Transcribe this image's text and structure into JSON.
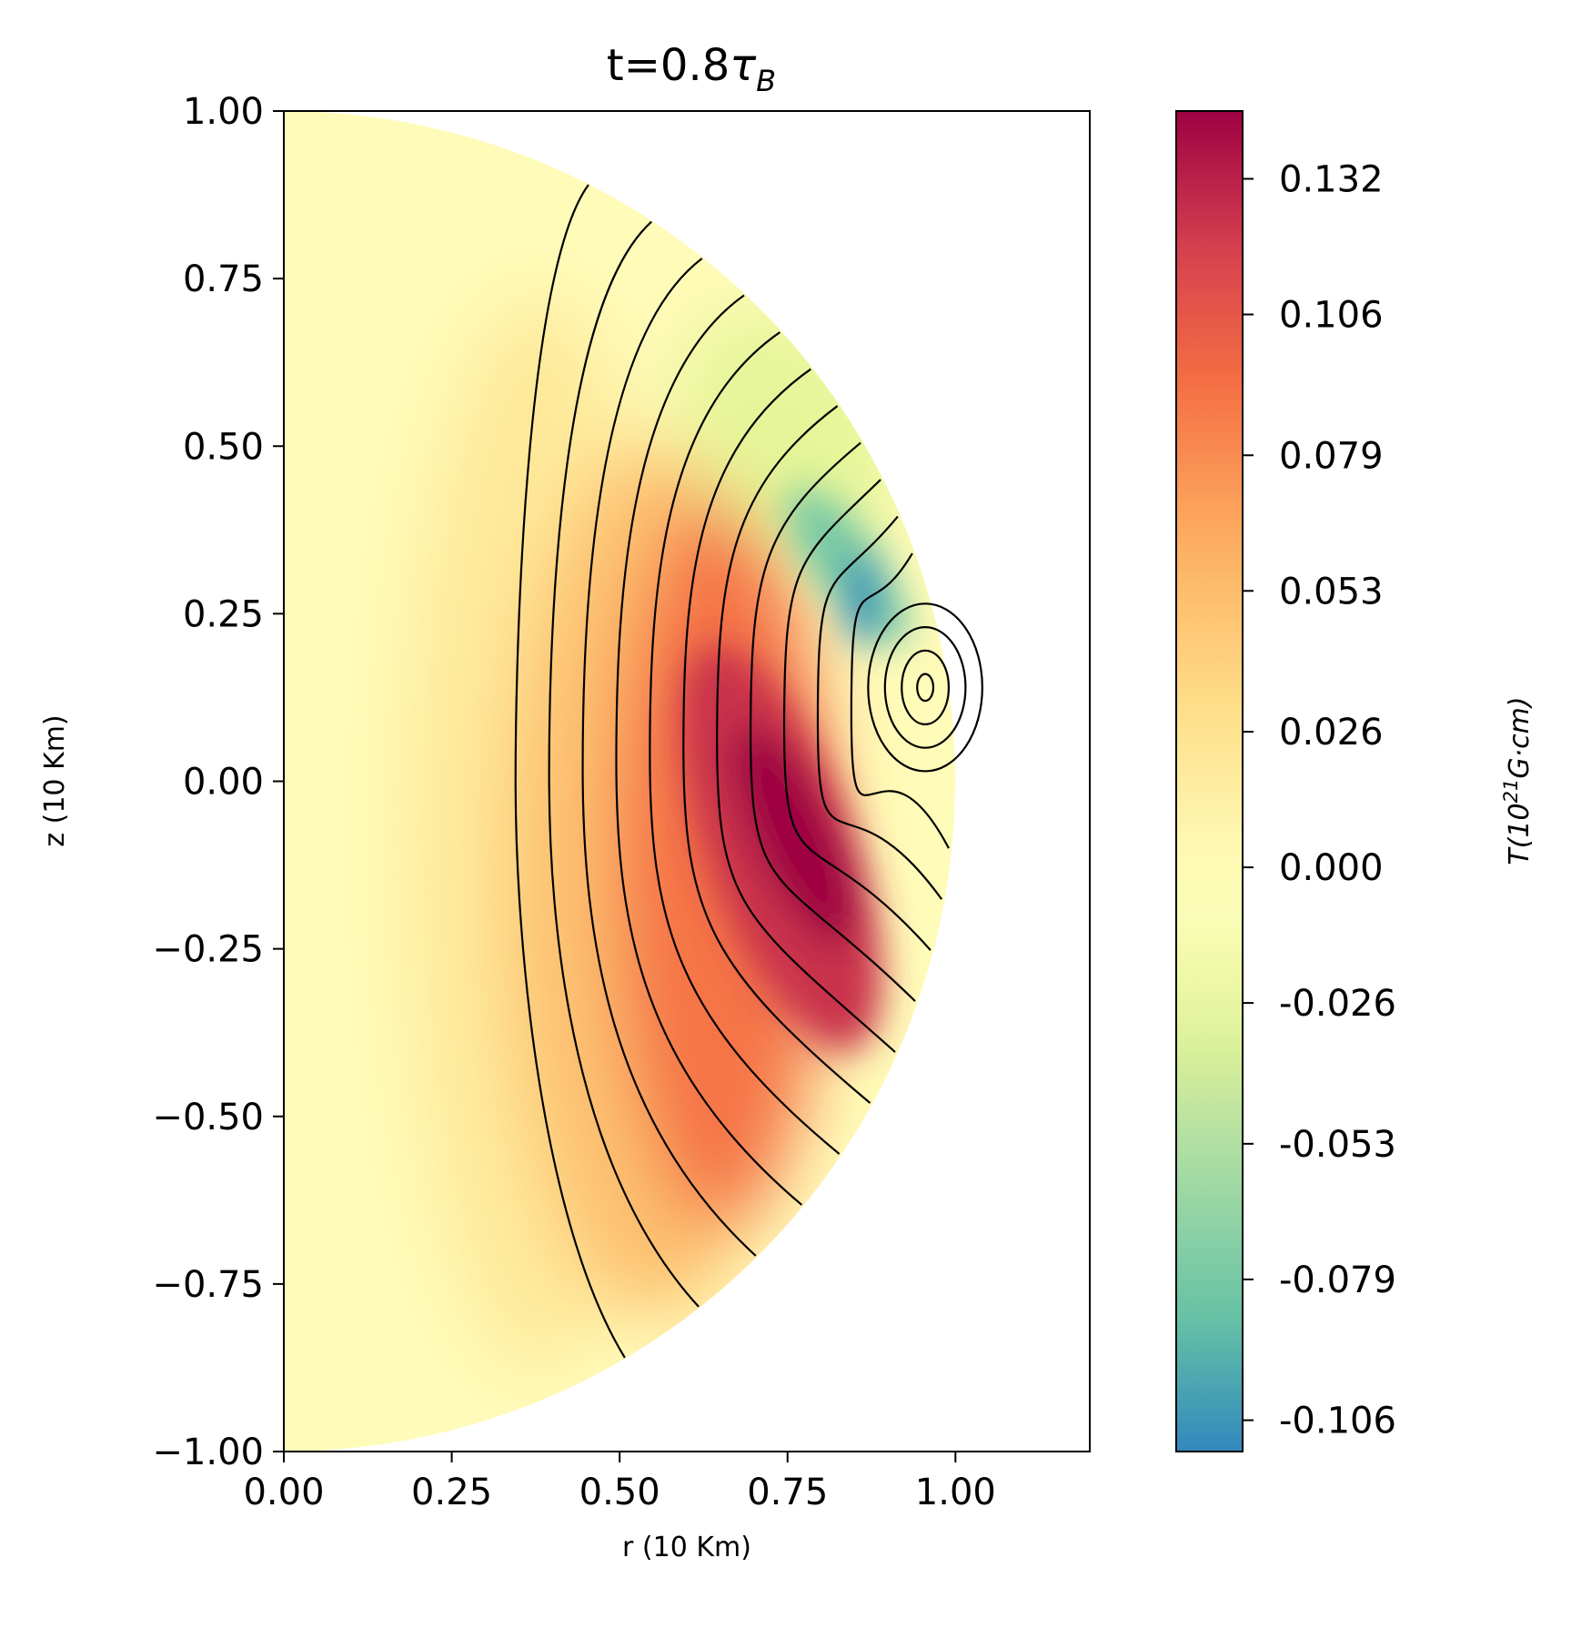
{
  "chart_data": {
    "type": "heatmap",
    "title": "t=0.8",
    "title_symbol": "τ",
    "title_subscript": "B",
    "xlabel": "r (10 Km)",
    "ylabel": "z (10 Km)",
    "xlim": [
      0.0,
      1.2
    ],
    "ylim": [
      -1.0,
      1.0
    ],
    "xticks": [
      "0.00",
      "0.25",
      "0.50",
      "0.75",
      "1.00"
    ],
    "xtick_values": [
      0.0,
      0.25,
      0.5,
      0.75,
      1.0
    ],
    "yticks": [
      "1.00",
      "0.75",
      "0.50",
      "0.25",
      "0.00",
      "−0.25",
      "−0.50",
      "−0.75",
      "−1.00"
    ],
    "ytick_values": [
      1.0,
      0.75,
      0.5,
      0.25,
      0.0,
      -0.25,
      -0.5,
      -0.75,
      -1.0
    ],
    "domain": "half-disk of radius 1.0 centered at origin (r ≥ 0)",
    "field_features": {
      "positive_peak": {
        "r": 0.76,
        "z": -0.08,
        "value": 0.145
      },
      "negative_trough": {
        "r": 0.86,
        "z": 0.28,
        "value": -0.11
      },
      "contour_center": {
        "r": 0.955,
        "z": 0.14
      }
    },
    "colorbar": {
      "label_base": "T(10",
      "label_exponent": "21",
      "label_units": "G·cm)",
      "colormap": "Spectral_r",
      "range": [
        -0.112,
        0.145
      ],
      "ticks": [
        "0.132",
        "0.106",
        "0.079",
        "0.053",
        "0.026",
        "0.000",
        "-0.026",
        "-0.053",
        "-0.079",
        "-0.106"
      ],
      "tick_values": [
        0.132,
        0.106,
        0.079,
        0.053,
        0.026,
        0.0,
        -0.026,
        -0.053,
        -0.079,
        -0.106
      ]
    },
    "contours": {
      "color": "#000000",
      "count": 18,
      "type": "magnetic field lines (poloidal flux)"
    }
  }
}
